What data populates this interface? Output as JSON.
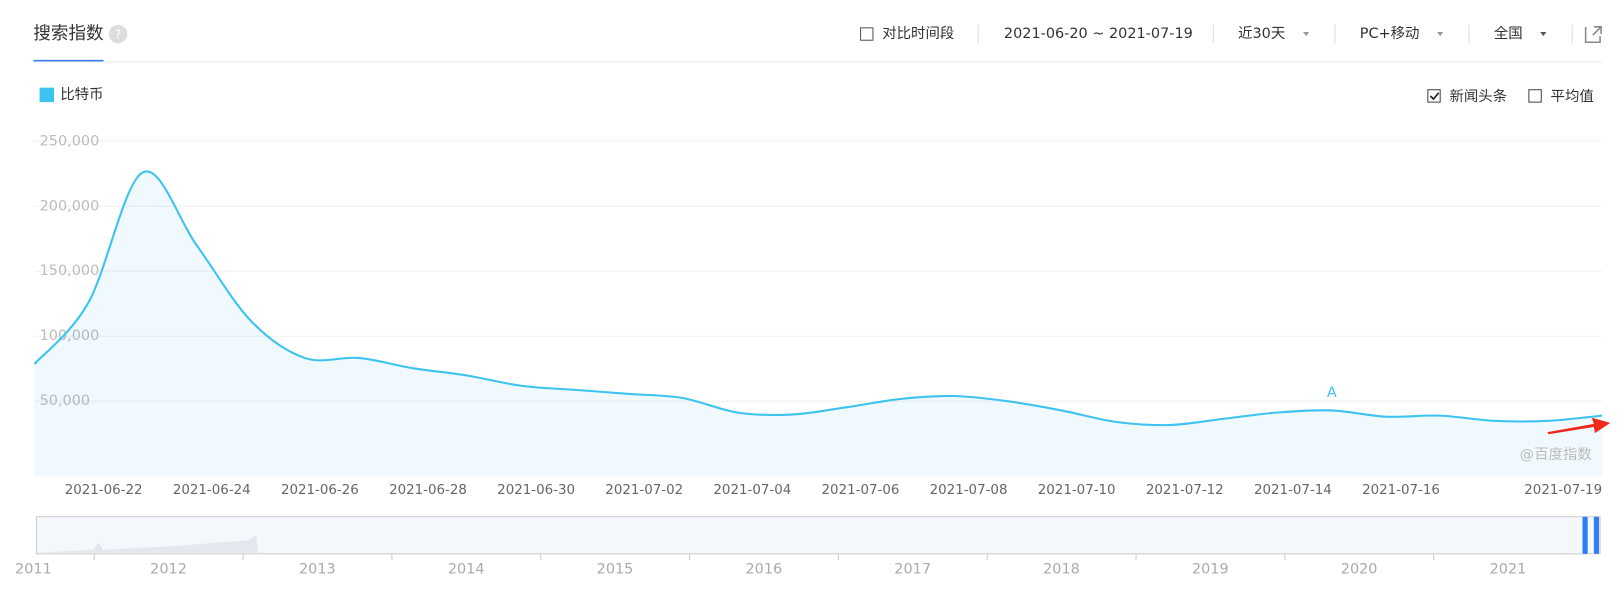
{
  "header": {
    "title": "搜索指数",
    "help": "?",
    "compare": "对比时间段",
    "date_range": "2021-06-20 ~ 2021-07-19",
    "period": "近30天",
    "device": "PC+移动",
    "region": "全国"
  },
  "options": [
    {
      "label": "新闻头条",
      "checked": true
    },
    {
      "label": "平均值",
      "checked": false
    }
  ],
  "chart_data": {
    "type": "line",
    "categories": [
      null,
      null,
      "2021-06-22",
      null,
      "2021-06-24",
      null,
      "2021-06-26",
      null,
      "2021-06-28",
      null,
      "2021-06-30",
      null,
      "2021-07-02",
      null,
      "2021-07-04",
      null,
      "2021-07-06",
      null,
      "2021-07-08",
      null,
      "2021-07-10",
      null,
      "2021-07-12",
      null,
      "2021-07-14",
      null,
      "2021-07-16",
      null,
      null,
      "2021-07-19"
    ],
    "series": [
      {
        "name": "比特币",
        "color": "#3cc3ef",
        "values": [
          78600,
          126000,
          226000,
          170000,
          112000,
          83300,
          83300,
          75400,
          69800,
          61900,
          58700,
          55600,
          52400,
          41300,
          39700,
          45200,
          51600,
          54000,
          50000,
          42900,
          34100,
          31700,
          36500,
          41300,
          42900,
          38100,
          38900,
          34900,
          34900,
          38900
        ]
      }
    ],
    "ylim": [
      0,
      250000
    ],
    "yticks": [
      {
        "value": 50000,
        "label": "50,000"
      },
      {
        "value": 100000,
        "label": "100,000"
      },
      {
        "value": 150000,
        "label": "150,000"
      },
      {
        "value": 200000,
        "label": "200,000"
      },
      {
        "value": 250000,
        "label": "250,000"
      }
    ],
    "grid": true,
    "annotations": [
      {
        "index": 24,
        "text": "A"
      }
    ],
    "watermark": "@百度指数"
  },
  "navigator": {
    "years": [
      "2011",
      "2012",
      "2013",
      "2014",
      "2015",
      "2016",
      "2017",
      "2018",
      "2019",
      "2020",
      "2021"
    ]
  }
}
